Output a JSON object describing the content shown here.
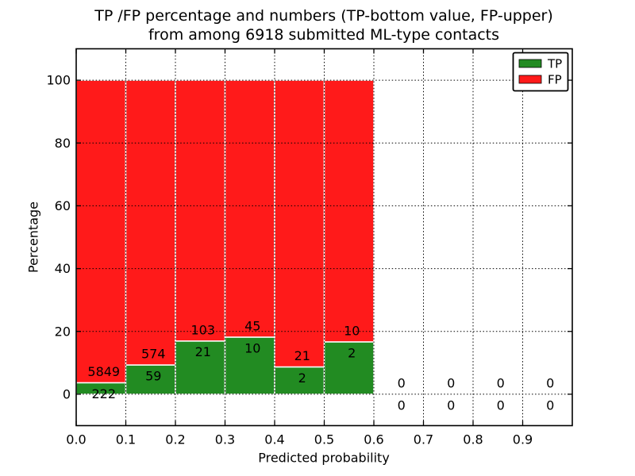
{
  "chart_data": {
    "type": "bar",
    "stacked": true,
    "title_lines": [
      "TP /FP percentage and numbers (TP-bottom value, FP-upper)",
      "from among 6918 submitted ML-type contacts"
    ],
    "xlabel": "Predicted probability",
    "ylabel": "Percentage",
    "xlim": [
      0,
      1.0
    ],
    "ylim": [
      -10,
      110
    ],
    "xtick_values": [
      0,
      0.1,
      0.2,
      0.3,
      0.4,
      0.5,
      0.6,
      0.7,
      0.8,
      0.9
    ],
    "xtick_labels": [
      "0.0",
      "0.1",
      "0.2",
      "0.3",
      "0.4",
      "0.5",
      "0.6",
      "0.7",
      "0.8",
      "0.9"
    ],
    "ytick_values": [
      0,
      20,
      40,
      60,
      80,
      100
    ],
    "ytick_labels": [
      "0",
      "20",
      "40",
      "60",
      "80",
      "100"
    ],
    "grid": "dotted",
    "bar_width": 0.1,
    "bins": [
      {
        "x0": 0.0,
        "tp": 222,
        "fp": 5849,
        "tp_pct": 3.66,
        "fp_pct": 96.34
      },
      {
        "x0": 0.1,
        "tp": 59,
        "fp": 574,
        "tp_pct": 9.32,
        "fp_pct": 90.68
      },
      {
        "x0": 0.2,
        "tp": 21,
        "fp": 103,
        "tp_pct": 16.94,
        "fp_pct": 83.06
      },
      {
        "x0": 0.3,
        "tp": 10,
        "fp": 45,
        "tp_pct": 18.18,
        "fp_pct": 81.82
      },
      {
        "x0": 0.4,
        "tp": 2,
        "fp": 21,
        "tp_pct": 8.7,
        "fp_pct": 91.3
      },
      {
        "x0": 0.5,
        "tp": 2,
        "fp": 10,
        "tp_pct": 16.67,
        "fp_pct": 83.33
      },
      {
        "x0": 0.6,
        "tp": 0,
        "fp": 0,
        "tp_pct": 0,
        "fp_pct": 0
      },
      {
        "x0": 0.7,
        "tp": 0,
        "fp": 0,
        "tp_pct": 0,
        "fp_pct": 0
      },
      {
        "x0": 0.8,
        "tp": 0,
        "fp": 0,
        "tp_pct": 0,
        "fp_pct": 0
      },
      {
        "x0": 0.9,
        "tp": 0,
        "fp": 0,
        "tp_pct": 0,
        "fp_pct": 0
      }
    ],
    "colors": {
      "tp": "#228b22",
      "fp": "#ff1a1a",
      "bar_edge": "#ffffff",
      "grid": "#000000"
    }
  },
  "legend": {
    "position": "upper right",
    "items": [
      {
        "label": "TP",
        "color": "#228b22"
      },
      {
        "label": "FP",
        "color": "#ff1a1a"
      }
    ]
  }
}
